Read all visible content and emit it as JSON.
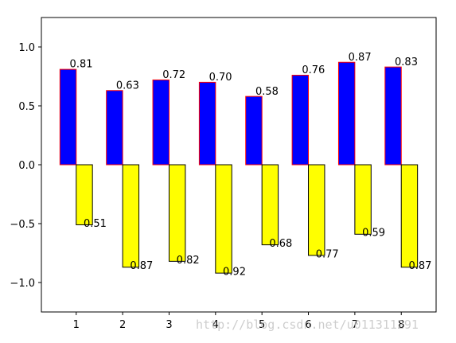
{
  "chart_data": {
    "type": "bar",
    "categories": [
      "1",
      "2",
      "3",
      "4",
      "5",
      "6",
      "7",
      "8"
    ],
    "series": [
      {
        "values": [
          0.81,
          0.63,
          0.72,
          0.7,
          0.58,
          0.76,
          0.87,
          0.83
        ],
        "fill": "#0000ff",
        "edge": "#ff0000"
      },
      {
        "values": [
          -0.51,
          -0.87,
          -0.82,
          -0.92,
          -0.68,
          -0.77,
          -0.59,
          -0.87
        ],
        "fill": "#ffff00",
        "edge": "#000000"
      }
    ],
    "positive_labels": [
      "0.81",
      "0.63",
      "0.72",
      "0.70",
      "0.58",
      "0.76",
      "0.87",
      "0.83"
    ],
    "negative_labels": [
      "0.51",
      "0.87",
      "0.82",
      "0.92",
      "0.68",
      "0.77",
      "0.59",
      "0.87"
    ],
    "title": "",
    "xlabel": "",
    "ylabel": "",
    "xlim": [
      0.25,
      8.75
    ],
    "ylim": [
      -1.25,
      1.25
    ],
    "yticks": [
      -1.0,
      -0.5,
      0.0,
      0.5,
      1.0
    ],
    "ytick_labels": [
      "−1.0",
      "−0.5",
      "0.0",
      "0.5",
      "1.0"
    ],
    "grid": false,
    "legend": "none"
  },
  "watermark": "http://blog.csdn.net/u011311291"
}
